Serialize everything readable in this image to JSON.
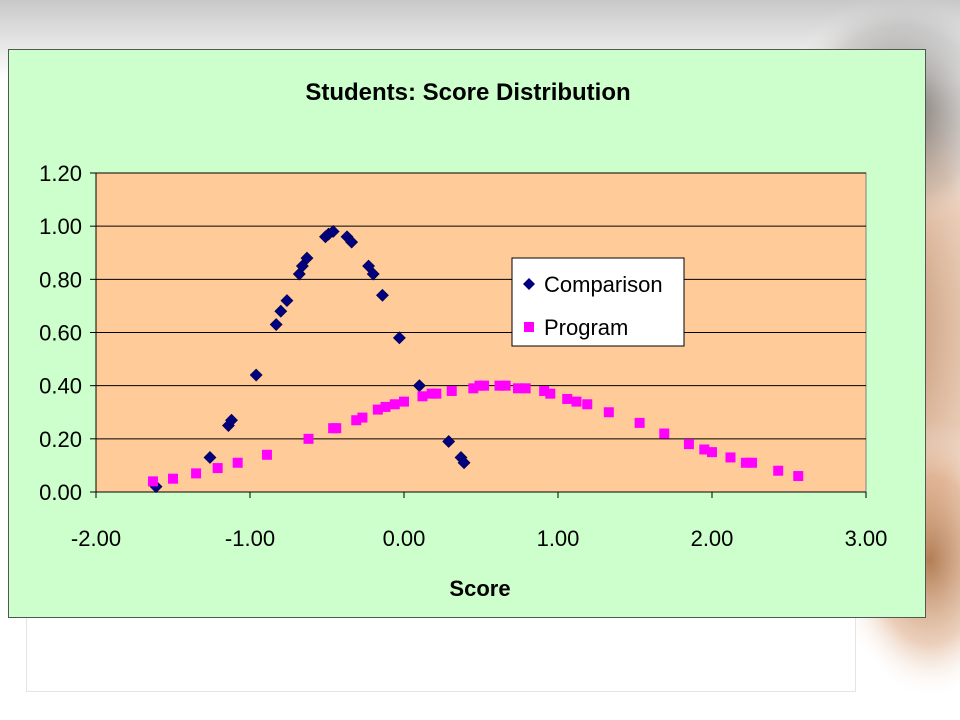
{
  "colors": {
    "chart_area": "#ccffcc",
    "plot_area": "#ffcc99",
    "comparison": "#000080",
    "program": "#ff00ff"
  },
  "chart_data": {
    "type": "scatter",
    "title": "Students: Score Distribution",
    "xlabel": "Score",
    "ylabel": "",
    "xlim": [
      -2,
      3
    ],
    "ylim": [
      0,
      1.2
    ],
    "x_ticks": [
      "-2.00",
      "-1.00",
      "0.00",
      "1.00",
      "2.00",
      "3.00"
    ],
    "y_ticks": [
      "0.00",
      "0.20",
      "0.40",
      "0.60",
      "0.80",
      "1.00",
      "1.20"
    ],
    "grid": "horizontal",
    "legend_position": "right",
    "series": [
      {
        "name": "Comparison",
        "marker": "diamond",
        "color": "#000080",
        "points": [
          [
            -1.61,
            0.02
          ],
          [
            -1.26,
            0.13
          ],
          [
            -1.14,
            0.25
          ],
          [
            -1.12,
            0.27
          ],
          [
            -0.96,
            0.44
          ],
          [
            -0.83,
            0.63
          ],
          [
            -0.8,
            0.68
          ],
          [
            -0.76,
            0.72
          ],
          [
            -0.68,
            0.82
          ],
          [
            -0.66,
            0.85
          ],
          [
            -0.63,
            0.88
          ],
          [
            -0.51,
            0.96
          ],
          [
            -0.49,
            0.97
          ],
          [
            -0.46,
            0.98
          ],
          [
            -0.37,
            0.96
          ],
          [
            -0.34,
            0.94
          ],
          [
            -0.23,
            0.85
          ],
          [
            -0.2,
            0.82
          ],
          [
            -0.14,
            0.74
          ],
          [
            -0.03,
            0.58
          ],
          [
            0.1,
            0.4
          ],
          [
            0.29,
            0.19
          ],
          [
            0.37,
            0.13
          ],
          [
            0.39,
            0.11
          ]
        ]
      },
      {
        "name": "Program",
        "marker": "square",
        "color": "#ff00ff",
        "points": [
          [
            -1.63,
            0.04
          ],
          [
            -1.5,
            0.05
          ],
          [
            -1.35,
            0.07
          ],
          [
            -1.21,
            0.09
          ],
          [
            -1.08,
            0.11
          ],
          [
            -0.89,
            0.14
          ],
          [
            -0.62,
            0.2
          ],
          [
            -0.46,
            0.24
          ],
          [
            -0.44,
            0.24
          ],
          [
            -0.31,
            0.27
          ],
          [
            -0.27,
            0.28
          ],
          [
            -0.17,
            0.31
          ],
          [
            -0.12,
            0.32
          ],
          [
            -0.06,
            0.33
          ],
          [
            0.0,
            0.34
          ],
          [
            0.12,
            0.36
          ],
          [
            0.18,
            0.37
          ],
          [
            0.21,
            0.37
          ],
          [
            0.31,
            0.38
          ],
          [
            0.45,
            0.39
          ],
          [
            0.49,
            0.4
          ],
          [
            0.52,
            0.4
          ],
          [
            0.62,
            0.4
          ],
          [
            0.66,
            0.4
          ],
          [
            0.74,
            0.39
          ],
          [
            0.79,
            0.39
          ],
          [
            0.91,
            0.38
          ],
          [
            0.95,
            0.37
          ],
          [
            1.06,
            0.35
          ],
          [
            1.12,
            0.34
          ],
          [
            1.19,
            0.33
          ],
          [
            1.33,
            0.3
          ],
          [
            1.53,
            0.26
          ],
          [
            1.69,
            0.22
          ],
          [
            1.85,
            0.18
          ],
          [
            1.95,
            0.16
          ],
          [
            2.0,
            0.15
          ],
          [
            2.12,
            0.13
          ],
          [
            2.22,
            0.11
          ],
          [
            2.26,
            0.11
          ],
          [
            2.43,
            0.08
          ],
          [
            2.56,
            0.06
          ]
        ]
      }
    ]
  }
}
